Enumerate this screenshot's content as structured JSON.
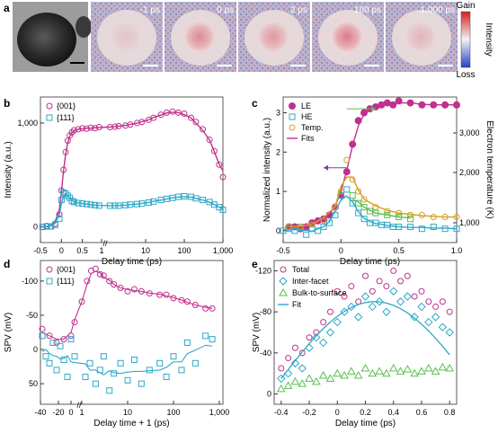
{
  "panel_a": {
    "label": "a",
    "frames": [
      "-1 ps",
      "0 ps",
      "2 ps",
      "100 ps",
      "1,000 ps"
    ],
    "colorbar": {
      "top": "Gain",
      "bottom": "Loss",
      "title": "Intensity"
    }
  },
  "chart_data": [
    {
      "panel": "b",
      "type": "scatter",
      "xlabel": "Delay time (ps)",
      "ylabel": "Intensity (a.u.)",
      "x_ticks_left": [
        "-0.5",
        "0",
        "0.5",
        "1"
      ],
      "x_ticks_right": [
        "1",
        "10",
        "100",
        "1,000"
      ],
      "y_ticks": [
        "0",
        "1,000"
      ],
      "ylim": [
        -150,
        1250
      ],
      "series": [
        {
          "name": "{001}",
          "color": "#c0308e",
          "marker": "circle",
          "x": [
            -0.45,
            -0.35,
            -0.25,
            -0.15,
            -0.05,
            0.0,
            0.05,
            0.1,
            0.15,
            0.2,
            0.25,
            0.3,
            0.4,
            0.5,
            0.6,
            0.7,
            0.8,
            0.9,
            1.2,
            1.6,
            2,
            3,
            4,
            6,
            8,
            12,
            16,
            25,
            35,
            50,
            70,
            100,
            150,
            200,
            300,
            450,
            600,
            800,
            1000
          ],
          "y": [
            0,
            10,
            5,
            30,
            120,
            350,
            550,
            720,
            830,
            880,
            910,
            930,
            940,
            950,
            945,
            955,
            950,
            960,
            960,
            965,
            970,
            975,
            985,
            1000,
            1010,
            1030,
            1050,
            1080,
            1100,
            1110,
            1100,
            1090,
            1050,
            1010,
            940,
            840,
            730,
            600,
            480
          ]
        },
        {
          "name": "{111}",
          "color": "#2ea8c8",
          "marker": "square",
          "x": [
            -0.45,
            -0.35,
            -0.25,
            -0.15,
            -0.05,
            0.0,
            0.05,
            0.1,
            0.15,
            0.2,
            0.25,
            0.3,
            0.4,
            0.5,
            0.6,
            0.7,
            0.8,
            0.9,
            1.2,
            1.6,
            2,
            3,
            4,
            6,
            8,
            12,
            16,
            25,
            35,
            50,
            70,
            100,
            150,
            200,
            300,
            450,
            600,
            800,
            1000
          ],
          "y": [
            0,
            5,
            5,
            20,
            80,
            260,
            330,
            320,
            300,
            280,
            250,
            240,
            230,
            225,
            220,
            215,
            210,
            205,
            205,
            205,
            205,
            210,
            215,
            220,
            225,
            235,
            245,
            260,
            270,
            280,
            290,
            295,
            290,
            275,
            260,
            240,
            215,
            190,
            165
          ]
        }
      ]
    },
    {
      "panel": "c",
      "type": "scatter",
      "xlabel": "Delay time (ps)",
      "ylabel": "Normalized intensity (a.u.)",
      "ylabel_right": "Electron temperature (K)",
      "xlim": [
        -0.5,
        1.0
      ],
      "x_ticks": [
        "-0.5",
        "0",
        "0.5",
        "1.0"
      ],
      "y_ticks": [
        "0",
        "1",
        "2",
        "3"
      ],
      "y_right_ticks": [
        "1,000",
        "2,000",
        "3,000"
      ],
      "legend": [
        "LE",
        "HE",
        "Temp.",
        "Fits"
      ],
      "series": [
        {
          "name": "LE",
          "color": "#c0308e",
          "marker": "filled-circle",
          "x": [
            -0.45,
            -0.4,
            -0.35,
            -0.3,
            -0.25,
            -0.2,
            -0.15,
            -0.1,
            -0.05,
            0.0,
            0.05,
            0.1,
            0.15,
            0.2,
            0.25,
            0.3,
            0.35,
            0.4,
            0.45,
            0.5,
            0.6,
            0.7,
            0.8,
            0.9,
            1.0
          ],
          "y": [
            0.1,
            0.1,
            0.05,
            0.1,
            0.2,
            0.25,
            0.3,
            0.4,
            0.6,
            0.9,
            1.5,
            2.2,
            2.8,
            3.0,
            3.1,
            3.15,
            3.2,
            3.25,
            3.2,
            3.3,
            3.25,
            3.2,
            3.2,
            3.2,
            3.2
          ]
        },
        {
          "name": "HE",
          "color": "#2ea8c8",
          "marker": "square",
          "x": [
            -0.5,
            -0.45,
            -0.4,
            -0.35,
            -0.3,
            -0.25,
            -0.2,
            -0.15,
            -0.1,
            -0.05,
            0.0,
            0.05,
            0.1,
            0.15,
            0.2,
            0.25,
            0.3,
            0.35,
            0.4,
            0.45,
            0.5,
            0.6,
            0.7,
            0.8,
            0.9,
            1.0
          ],
          "y": [
            0.0,
            0.05,
            0.0,
            0.1,
            -0.1,
            0.05,
            0.0,
            0.1,
            0.2,
            0.4,
            0.9,
            1.05,
            0.7,
            0.45,
            0.3,
            0.2,
            0.2,
            0.15,
            0.15,
            0.1,
            0.1,
            0.1,
            0.05,
            0.1,
            0.05,
            0.05
          ]
        },
        {
          "name": "Temp.",
          "color": "#d4a020",
          "marker": "circle",
          "x": [
            -0.45,
            -0.35,
            -0.25,
            -0.15,
            -0.05,
            0.0,
            0.05,
            0.1,
            0.15,
            0.2,
            0.3,
            0.4,
            0.5,
            0.6,
            0.7,
            0.8,
            0.9,
            1.0
          ],
          "y": [
            0.1,
            0.1,
            0.15,
            0.25,
            0.6,
            1.0,
            1.8,
            1.3,
            1.0,
            0.8,
            0.6,
            0.5,
            0.45,
            0.4,
            0.4,
            0.35,
            0.35,
            0.35
          ]
        },
        {
          "name": "Fits (temp.)",
          "color": "#5bbf4f",
          "marker": "square",
          "x": [
            0.1,
            0.15,
            0.2,
            0.25,
            0.3,
            0.4,
            0.5,
            0.6
          ],
          "y": [
            0.9,
            0.7,
            0.6,
            0.5,
            0.45,
            0.4,
            0.35,
            0.3
          ]
        }
      ]
    },
    {
      "panel": "d",
      "type": "scatter",
      "xlabel": "Delay time + 1 (ps)",
      "ylabel": "SPV (mV)",
      "x_ticks_left": [
        "-40",
        "-20",
        "0"
      ],
      "x_ticks_right": [
        "1",
        "10",
        "100",
        "1,000"
      ],
      "y_ticks": [
        "-100",
        "-50",
        "0",
        "50"
      ],
      "ylim_inverted": [
        -130,
        80
      ],
      "legend": [
        "{001}",
        "{111}"
      ],
      "series": [
        {
          "name": "{001}",
          "color": "#c0308e",
          "marker": "circle",
          "x": [
            -38,
            -30,
            -22,
            -14,
            -6,
            -2,
            1,
            1.3,
            1.6,
            2,
            2.5,
            3,
            4,
            5,
            7,
            10,
            14,
            20,
            30,
            50,
            70,
            100,
            150,
            200,
            300,
            500,
            700
          ],
          "y": [
            -30,
            -20,
            -10,
            -15,
            -20,
            -40,
            -70,
            -100,
            -115,
            -118,
            -110,
            -108,
            -100,
            -95,
            -90,
            -85,
            -88,
            -85,
            -82,
            -80,
            -80,
            -75,
            -72,
            -70,
            -65,
            -60,
            -60
          ]
        },
        {
          "name": "{111}",
          "color": "#2ea8c8",
          "marker": "square",
          "x": [
            -38,
            -34,
            -30,
            -26,
            -22,
            -18,
            -14,
            -10,
            -6,
            -2,
            1.2,
            1.5,
            2,
            2.5,
            3,
            4,
            5,
            7,
            10,
            14,
            20,
            30,
            50,
            70,
            100,
            150,
            200,
            300,
            500,
            700
          ],
          "y": [
            -20,
            10,
            20,
            -10,
            30,
            -5,
            15,
            40,
            -15,
            10,
            40,
            20,
            50,
            30,
            10,
            60,
            35,
            20,
            45,
            15,
            50,
            30,
            20,
            40,
            10,
            30,
            -10,
            20,
            -20,
            -15
          ]
        }
      ]
    },
    {
      "panel": "e",
      "type": "scatter",
      "xlabel": "Delay time (ps)",
      "ylabel": "SPV (mV)",
      "xlim": [
        -0.4,
        0.8
      ],
      "x_ticks": [
        "-0.4",
        "-0.2",
        "0",
        "0.2",
        "0.4",
        "0.6",
        "0.8"
      ],
      "y_ticks": [
        "-120",
        "-80",
        "-40",
        "0"
      ],
      "ylim_inverted": [
        -130,
        10
      ],
      "legend": [
        "Total",
        "Inter-facet",
        "Bulk-to-surface",
        "Fit"
      ],
      "series": [
        {
          "name": "Total",
          "color": "#c0308e",
          "marker": "circle",
          "x": [
            -0.4,
            -0.35,
            -0.3,
            -0.25,
            -0.2,
            -0.15,
            -0.1,
            -0.05,
            0.0,
            0.05,
            0.1,
            0.15,
            0.2,
            0.25,
            0.3,
            0.35,
            0.4,
            0.45,
            0.5,
            0.55,
            0.6,
            0.65,
            0.7,
            0.75,
            0.8
          ],
          "y": [
            -25,
            -35,
            -45,
            -40,
            -55,
            -60,
            -70,
            -80,
            -100,
            -95,
            -105,
            -90,
            -115,
            -100,
            -110,
            -105,
            -120,
            -110,
            -115,
            -95,
            -100,
            -90,
            -85,
            -90,
            -80
          ]
        },
        {
          "name": "Inter-facet",
          "color": "#2ea8c8",
          "marker": "diamond",
          "x": [
            -0.4,
            -0.35,
            -0.3,
            -0.25,
            -0.2,
            -0.15,
            -0.1,
            -0.05,
            0.0,
            0.05,
            0.1,
            0.15,
            0.2,
            0.25,
            0.3,
            0.35,
            0.4,
            0.45,
            0.5,
            0.55,
            0.6,
            0.65,
            0.7,
            0.75,
            0.8
          ],
          "y": [
            -15,
            -20,
            -30,
            -25,
            -45,
            -55,
            -50,
            -60,
            -70,
            -80,
            -85,
            -75,
            -95,
            -85,
            -90,
            -80,
            -100,
            -90,
            -95,
            -75,
            -85,
            -70,
            -75,
            -65,
            -60
          ]
        },
        {
          "name": "Bulk-to-surface",
          "color": "#5bbf4f",
          "marker": "triangle",
          "x": [
            -0.4,
            -0.35,
            -0.3,
            -0.25,
            -0.2,
            -0.15,
            -0.1,
            -0.05,
            0.0,
            0.05,
            0.1,
            0.15,
            0.2,
            0.25,
            0.3,
            0.35,
            0.4,
            0.45,
            0.5,
            0.55,
            0.6,
            0.65,
            0.7,
            0.75,
            0.8
          ],
          "y": [
            -5,
            -8,
            -12,
            -10,
            -15,
            -12,
            -18,
            -15,
            -20,
            -18,
            -22,
            -18,
            -25,
            -20,
            -22,
            -20,
            -25,
            -22,
            -24,
            -20,
            -22,
            -25,
            -22,
            -26,
            -25
          ]
        }
      ]
    }
  ]
}
